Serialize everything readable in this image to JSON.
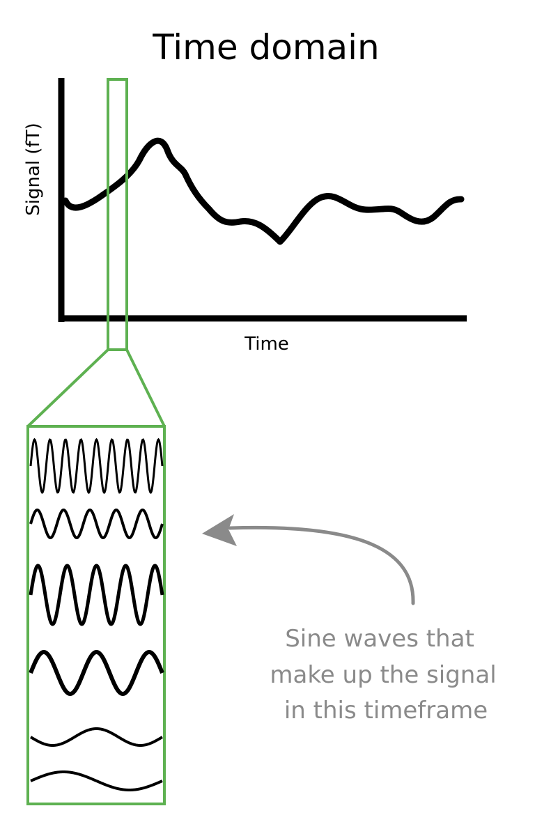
{
  "title": "Time domain",
  "x_axis_label": "Time",
  "y_axis_label": "Signal (fT)",
  "caption_lines": [
    "Sine waves that",
    "make up the signal",
    "in this timeframe"
  ],
  "colors": {
    "highlight": "#5eb151",
    "signal": "#000000",
    "arrow": "#8a8a8a",
    "caption": "#8a8a8a"
  },
  "sine_wave_count": 6
}
